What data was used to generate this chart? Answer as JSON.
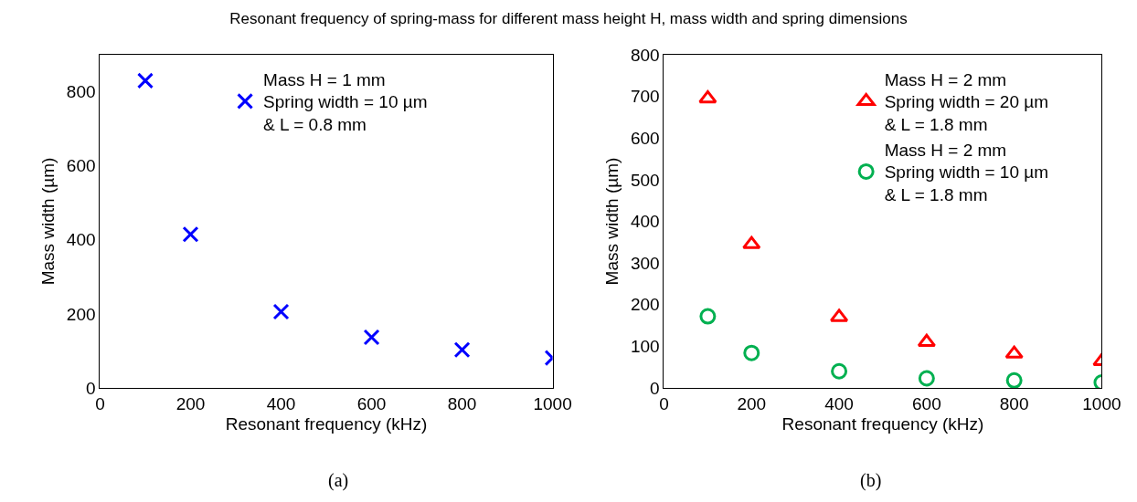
{
  "chart_data": [
    {
      "type": "scatter",
      "title": "Resonant frequency of spring-mass for different mass height H, mass width and spring dimensions",
      "xlabel": "Resonant frequency (kHz)",
      "ylabel": "Mass width (µm)",
      "annotations": [
        "(a)"
      ],
      "xlim": [
        0,
        1000
      ],
      "xticks": [
        0,
        200,
        400,
        600,
        800,
        1000
      ],
      "ylim": [
        0,
        900
      ],
      "yticks": [
        0,
        200,
        400,
        600,
        800
      ],
      "grid": false,
      "legend": "top right",
      "x": [
        100,
        200,
        400,
        600,
        800,
        1000
      ],
      "series": [
        {
          "name": "Mass H = 1 mm\nSpring width = 10 µm\n& L = 0.8 mm",
          "color": "#0000ff",
          "marker": "cross",
          "values": [
            830,
            415,
            206,
            137,
            103,
            81
          ]
        }
      ]
    },
    {
      "type": "scatter",
      "xlabel": "Resonant frequency (kHz)",
      "ylabel": "Mass width (µm)",
      "annotations": [
        "(b)"
      ],
      "xlim": [
        0,
        1000
      ],
      "xticks": [
        0,
        200,
        400,
        600,
        800,
        1000
      ],
      "ylim": [
        0,
        800
      ],
      "yticks": [
        0,
        100,
        200,
        300,
        400,
        500,
        600,
        700,
        800
      ],
      "grid": false,
      "legend": "top right",
      "x": [
        100,
        200,
        400,
        600,
        800,
        1000
      ],
      "series": [
        {
          "name": "Mass H = 2 mm\nSpring width = 20 µm\n& L = 1.8 mm",
          "color": "#ff0000",
          "marker": "triangle",
          "values": [
            695,
            345,
            170,
            110,
            82,
            64
          ]
        },
        {
          "name": "Mass H = 2 mm\nSpring width = 10 µm\n& L = 1.8 mm",
          "color": "#00b050",
          "marker": "circle",
          "values": [
            172,
            84,
            40,
            23,
            18,
            13
          ]
        }
      ]
    }
  ]
}
